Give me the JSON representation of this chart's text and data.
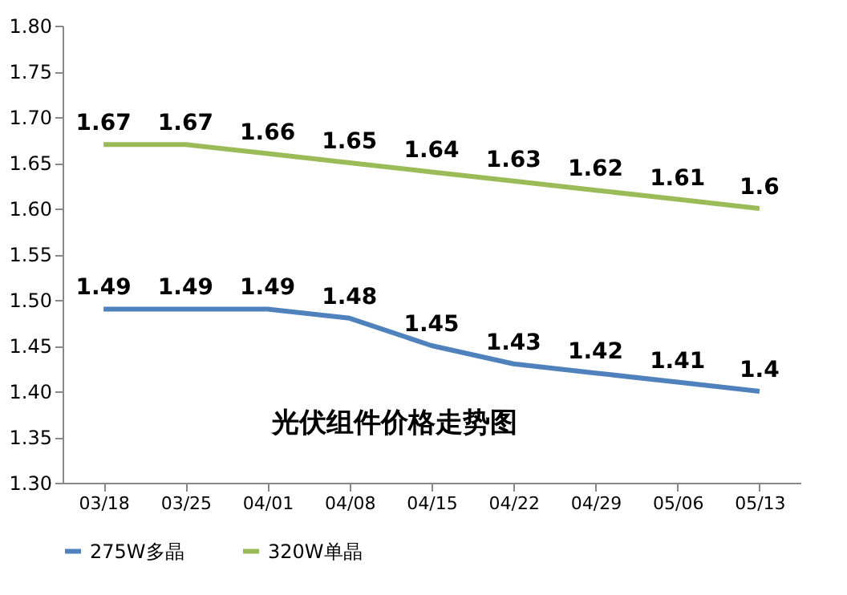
{
  "chart_data": {
    "type": "line",
    "title": "光伏组件价格走势图",
    "categories": [
      "03/18",
      "03/25",
      "04/01",
      "04/08",
      "04/15",
      "04/22",
      "04/29",
      "05/06",
      "05/13"
    ],
    "series": [
      {
        "name": "275W多晶",
        "color": "#4f81bd",
        "values": [
          1.49,
          1.49,
          1.49,
          1.48,
          1.45,
          1.43,
          1.42,
          1.41,
          1.4
        ]
      },
      {
        "name": "320W单晶",
        "color": "#9bbb59",
        "values": [
          1.67,
          1.67,
          1.66,
          1.65,
          1.64,
          1.63,
          1.62,
          1.61,
          1.6
        ]
      }
    ],
    "ylim": [
      1.3,
      1.8
    ],
    "yticks": [
      {
        "value": 1.3,
        "label": "1.30"
      },
      {
        "value": 1.35,
        "label": "1.35"
      },
      {
        "value": 1.4,
        "label": "1.40"
      },
      {
        "value": 1.45,
        "label": "1.45"
      },
      {
        "value": 1.5,
        "label": "1.50"
      },
      {
        "value": 1.55,
        "label": "1.55"
      },
      {
        "value": 1.6,
        "label": "1.60"
      },
      {
        "value": 1.65,
        "label": "1.65"
      },
      {
        "value": 1.7,
        "label": "1.70"
      },
      {
        "value": 1.75,
        "label": "1.75"
      },
      {
        "value": 1.8,
        "label": "1.80"
      }
    ],
    "grid": false,
    "legend": "bottom",
    "marker": "none",
    "line_style": "solid",
    "data_labels": true
  }
}
